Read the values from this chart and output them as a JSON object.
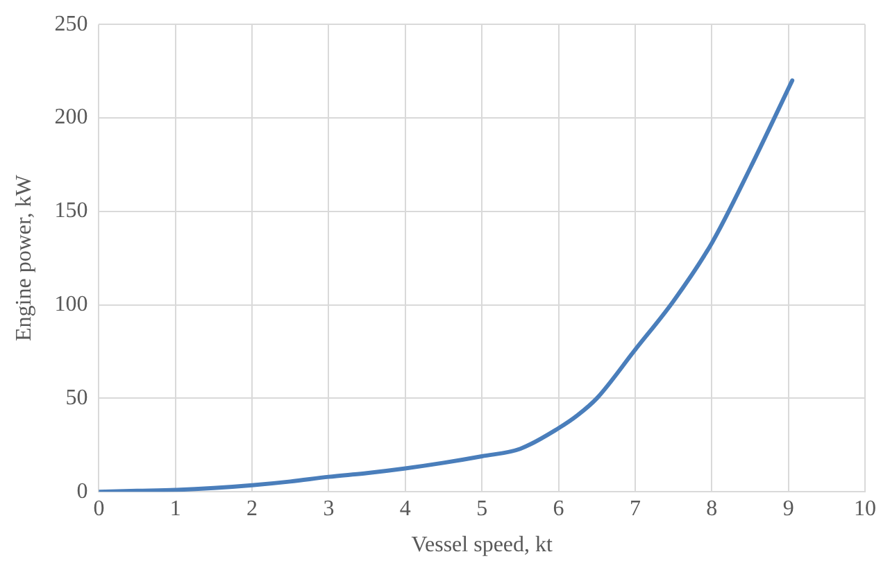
{
  "chart_data": {
    "type": "line",
    "xlabel": "Vessel speed, kt",
    "ylabel": "Engine power, kW",
    "x": [
      0,
      0.5,
      1,
      1.5,
      2,
      2.5,
      3,
      3.5,
      4,
      4.5,
      5,
      5.5,
      6,
      6.25,
      6.5,
      7,
      7.5,
      8,
      8.5,
      9.05
    ],
    "series": [
      {
        "color": "#4a7ebb",
        "values": [
          0,
          0.5,
          1,
          2,
          3.5,
          5.5,
          8,
          10,
          12.5,
          15.5,
          19,
          23,
          34,
          41,
          50,
          76,
          102,
          133,
          173,
          220
        ]
      }
    ],
    "xlim": [
      0,
      10
    ],
    "xticks": [
      0,
      1,
      2,
      3,
      4,
      5,
      6,
      7,
      8,
      9,
      10
    ],
    "ylim": [
      0,
      250
    ],
    "yticks": [
      0,
      50,
      100,
      150,
      200,
      250
    ],
    "grid": true,
    "legend": false,
    "marker": "none",
    "line_style": "solid"
  }
}
